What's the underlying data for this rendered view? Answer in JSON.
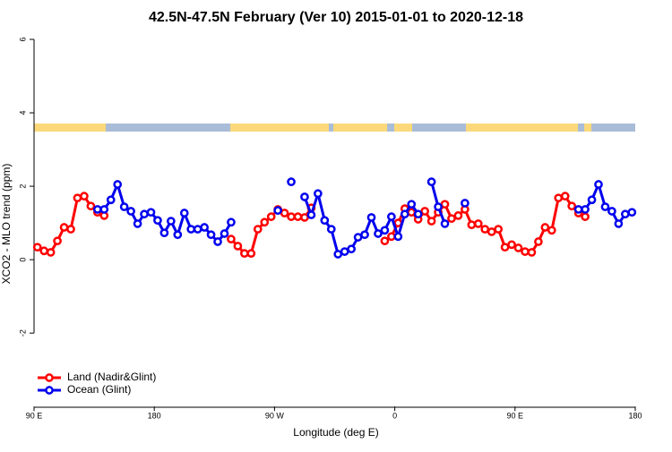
{
  "chart_data": {
    "type": "line",
    "title": "42.5N-47.5N February (Ver 10)   2015-01-01 to 2020-12-18",
    "x_label": "Longitude (deg E)",
    "y_label": "XCO2 - MLO trend (ppm)",
    "xlim": [
      90,
      540
    ],
    "xticks": [
      {
        "value": 90,
        "label": "90 E"
      },
      180,
      {
        "value": 270,
        "label": "90 W"
      },
      {
        "value": 360,
        "label": "0"
      },
      {
        "value": 450,
        "label": "90 E"
      },
      {
        "value": 540,
        "label": "180"
      }
    ],
    "ylim": [
      -4,
      6.2
    ],
    "yticks": [
      -2,
      0,
      2,
      4,
      6
    ],
    "legend": "bottom-left",
    "series": [
      {
        "name": "Land (Nadir&Glint)",
        "color": "#ff0000",
        "x": [
          92.5,
          97.5,
          102.5,
          107.5,
          112.5,
          117.5,
          122.5,
          127.5,
          132.5,
          137.5,
          142.5,
          147.5,
          237.5,
          242.5,
          247.5,
          252.5,
          257.5,
          262.5,
          267.5,
          272.5,
          277.5,
          282.5,
          287.5,
          292.5,
          297.5,
          302.5,
          352.5,
          357.5,
          362.5,
          367.5,
          372.5,
          377.5,
          382.5,
          387.5,
          392.5,
          397.5,
          402.5,
          407.5,
          412.5,
          417.5,
          422.5,
          427.5,
          432.5,
          437.5,
          442.5,
          447.5,
          452.5,
          457.5,
          462.5,
          467.5,
          472.5,
          477.5,
          482.5,
          487.5,
          492.5,
          497.5,
          502.5
        ],
        "values": [
          0.34,
          0.24,
          0.2,
          0.51,
          0.88,
          0.83,
          1.68,
          1.73,
          1.46,
          1.29,
          1.2,
          null,
          0.56,
          0.37,
          0.17,
          0.17,
          0.83,
          1.02,
          1.17,
          1.37,
          1.27,
          1.17,
          1.17,
          1.15,
          1.41,
          null,
          0.51,
          0.63,
          1.0,
          1.39,
          1.29,
          1.1,
          1.32,
          1.05,
          1.29,
          1.51,
          1.12,
          1.2,
          1.37,
          0.95,
          0.98,
          0.83,
          0.76,
          0.83,
          0.34,
          0.41,
          0.32,
          0.22,
          0.2,
          0.49,
          0.88,
          0.8,
          1.68,
          1.73,
          1.46,
          1.27,
          1.17
        ]
      },
      {
        "name": "Ocean (Glint)",
        "color": "#0000ee",
        "x": [
          137.5,
          142.5,
          147.5,
          152.5,
          157.5,
          162.5,
          167.5,
          172.5,
          177.5,
          182.5,
          187.5,
          192.5,
          197.5,
          202.5,
          207.5,
          212.5,
          217.5,
          222.5,
          227.5,
          232.5,
          237.5,
          242.5,
          272.5,
          277.5,
          282.5,
          287.5,
          292.5,
          297.5,
          302.5,
          307.5,
          312.5,
          317.5,
          322.5,
          327.5,
          332.5,
          337.5,
          342.5,
          347.5,
          352.5,
          357.5,
          362.5,
          367.5,
          372.5,
          377.5,
          382.5,
          387.5,
          392.5,
          397.5,
          402.5,
          412.5,
          417.5,
          497.5,
          502.5,
          507.5,
          512.5,
          517.5,
          522.5,
          527.5,
          532.5,
          537.5
        ],
        "values": [
          1.37,
          1.37,
          1.63,
          2.05,
          1.44,
          1.32,
          0.98,
          1.24,
          1.29,
          1.07,
          0.73,
          1.05,
          0.68,
          1.27,
          0.83,
          0.83,
          0.88,
          0.68,
          0.49,
          0.71,
          1.02,
          null,
          1.34,
          null,
          2.12,
          null,
          1.71,
          1.22,
          1.8,
          1.07,
          0.83,
          0.15,
          0.22,
          0.29,
          0.61,
          0.68,
          1.15,
          0.71,
          0.8,
          1.17,
          0.63,
          1.24,
          1.51,
          1.24,
          null,
          2.12,
          1.44,
          0.98,
          null,
          1.54,
          null,
          1.37,
          1.37,
          1.63,
          2.05,
          1.44,
          1.32,
          0.98,
          1.24,
          1.29
        ]
      }
    ]
  }
}
